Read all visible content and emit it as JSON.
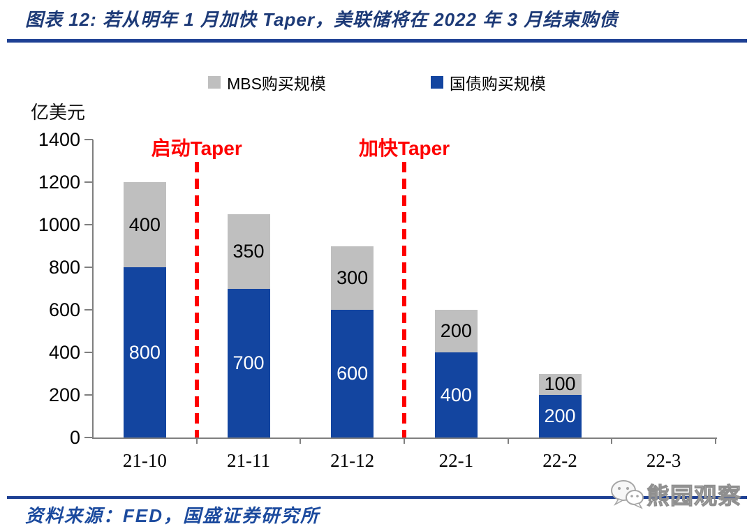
{
  "header": {
    "title": "图表 12:  若从明年 1 月加快 Taper，美联储将在 2022 年 3 月结束购债"
  },
  "legend": {
    "items": [
      {
        "label": "MBS购买规模",
        "color": "#bfbfbf"
      },
      {
        "label": "国债购买规模",
        "color": "#1345a0"
      }
    ]
  },
  "annotations": [
    {
      "label": "启动Taper",
      "at_boundary": 1
    },
    {
      "label": "加快Taper",
      "at_boundary": 3
    }
  ],
  "footer": {
    "source": "资料来源：FED，国盛证券研究所",
    "watermark": "熊园观察"
  },
  "colors": {
    "treasury_blue": "#1345a0",
    "mbs_gray": "#bfbfbf",
    "annotation_red": "#fe0000",
    "rule_blue": "#1e4094",
    "title_blue": "#1d3a77",
    "axis_gray": "#7f7f7f",
    "watermark_gray": "#c3c3c3"
  },
  "chart_data": {
    "type": "bar",
    "stacked": true,
    "title": "若从明年1月加快Taper，美联储将在2022年3月结束购债",
    "ylabel": "亿美元",
    "xlabel": "",
    "categories": [
      "21-10",
      "21-11",
      "21-12",
      "22-1",
      "22-2",
      "22-3"
    ],
    "series": [
      {
        "name": "国债购买规模",
        "color": "#1345a0",
        "label_color": "#ffffff",
        "values": [
          800,
          700,
          600,
          400,
          200,
          0
        ]
      },
      {
        "name": "MBS购买规模",
        "color": "#bfbfbf",
        "label_color": "#000000",
        "values": [
          400,
          350,
          300,
          200,
          100,
          0
        ]
      }
    ],
    "ylim": [
      0,
      1400
    ],
    "ytick_interval": 200,
    "grid": false,
    "legend_position": "top"
  }
}
